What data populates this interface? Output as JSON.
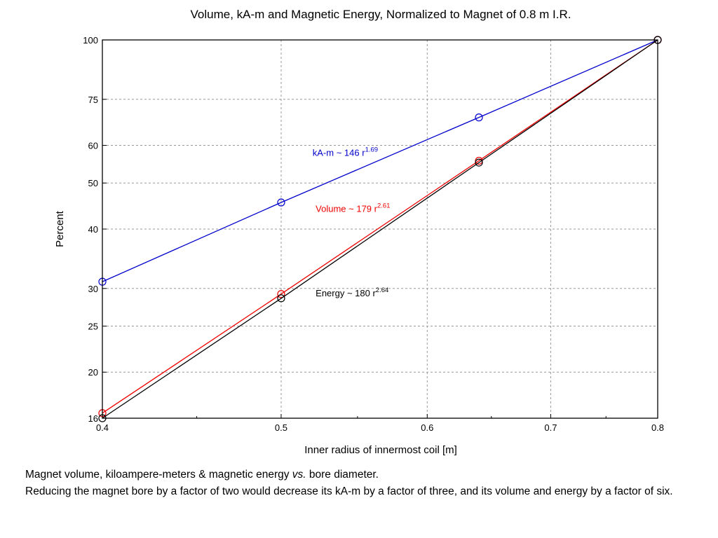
{
  "chart_data": {
    "type": "line",
    "title": "Volume, kA-m and Magnetic Energy, Normalized to Magnet of 0.8 m I.R.",
    "xlabel": "Inner radius of innermost coil  [m]",
    "ylabel": "Percent",
    "xscale": "log",
    "yscale": "log",
    "xlim": [
      0.4,
      0.8
    ],
    "ylim": [
      16,
      100
    ],
    "xticks": [
      0.4,
      0.5,
      0.6,
      0.7,
      0.8
    ],
    "xtick_labels": [
      "0.4",
      "0.5",
      "0.6",
      "0.7",
      "0.8"
    ],
    "yticks": [
      16,
      20,
      25,
      30,
      40,
      50,
      60,
      75,
      100
    ],
    "ytick_labels": [
      "16",
      "20",
      "25",
      "30",
      "40",
      "50",
      "60",
      "75",
      "100"
    ],
    "grid": true,
    "x": [
      0.4,
      0.5,
      0.64,
      0.8
    ],
    "series": [
      {
        "key": "kam",
        "values": [
          31,
          45.5,
          68.7,
          100
        ],
        "color": "#0000cc",
        "label_text": "kA-m ~ 146 r",
        "label_exp": "1.69",
        "label_at": [
          0.52,
          57
        ]
      },
      {
        "key": "volume",
        "values": [
          16.4,
          29.2,
          55.7,
          100
        ],
        "color": "#ee0000",
        "label_text": "Volume ~ 179 r",
        "label_exp": "2.61",
        "label_at": [
          0.522,
          43.5
        ]
      },
      {
        "key": "energy",
        "values": [
          16.0,
          28.6,
          55.2,
          100
        ],
        "color": "#000000",
        "label_text": "Energy ~ 180 r",
        "label_exp": "2.64",
        "label_at": [
          0.522,
          28.9
        ]
      }
    ]
  },
  "caption": {
    "line1_pre": "Magnet volume, kiloampere-meters & magnetic energy ",
    "line1_em": "vs.",
    "line1_post": " bore diameter.",
    "line2": "Reducing the magnet bore by a factor of two would decrease its kA-m by a factor of three, and its volume and energy by a factor of six."
  }
}
